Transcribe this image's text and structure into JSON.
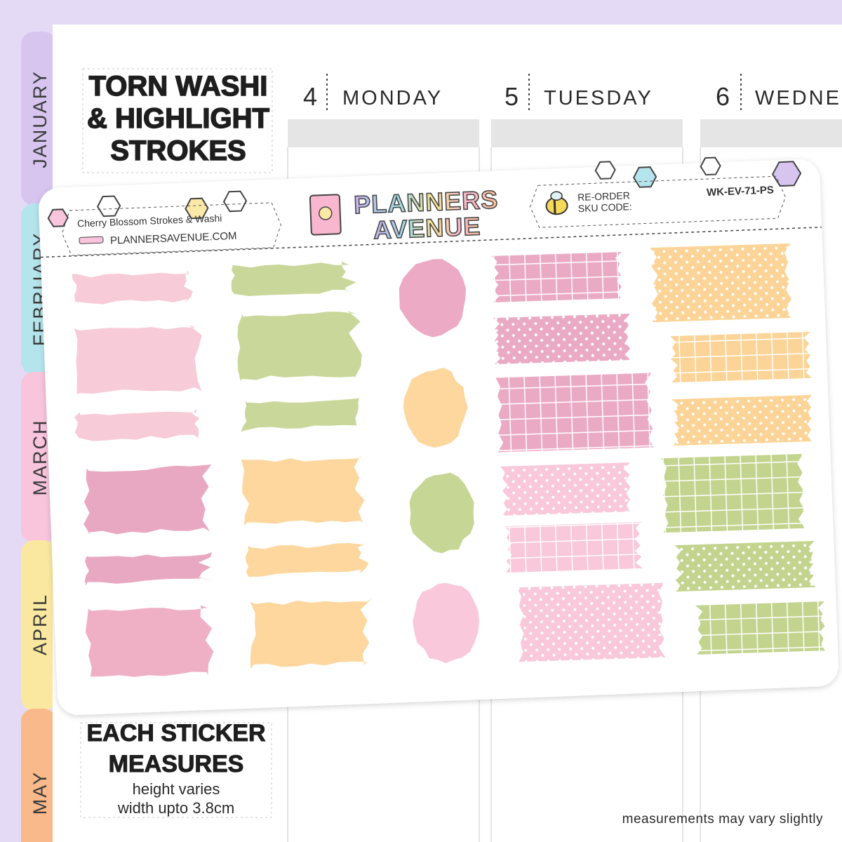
{
  "tabs": [
    "JANUARY",
    "FEBRUARY",
    "MARCH",
    "APRIL",
    "MAY"
  ],
  "title": [
    "TORN WASHI",
    "& HIGHLIGHT",
    "STROKES"
  ],
  "days": [
    {
      "number": 4,
      "name": "MONDAY"
    },
    {
      "number": 5,
      "name": "TUESDAY"
    },
    {
      "number": 6,
      "name": "WEDNE"
    }
  ],
  "sheet": {
    "product_name": "Cherry Blossom Strokes & Washi",
    "website": "PLANNERSAVENUE.COM",
    "brand": [
      "PLANNERS",
      "AVENUE"
    ],
    "reorder_label": [
      "RE-ORDER",
      "SKU CODE:"
    ],
    "sku": "WK-EV-71-PS"
  },
  "size_info": {
    "heading": [
      "EACH STICKER",
      "MEASURES"
    ],
    "lines": [
      "height varies",
      "width upto 3.8cm"
    ]
  },
  "footnote": "measurements may vary slightly"
}
